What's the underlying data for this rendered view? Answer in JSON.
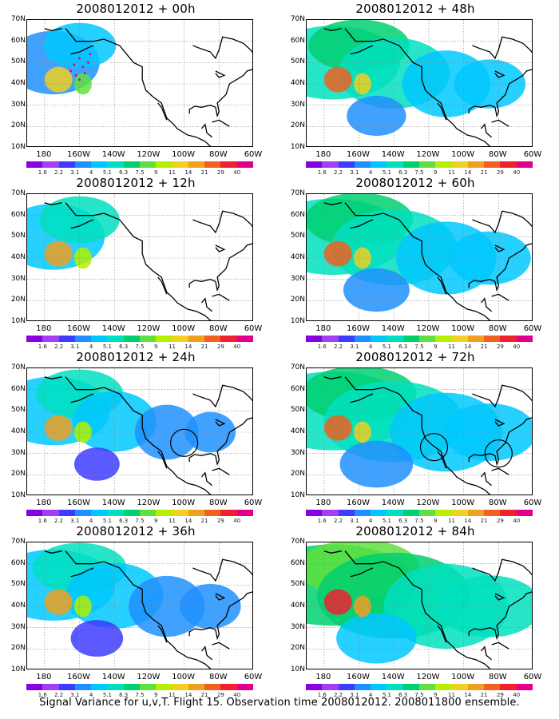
{
  "caption": "Signal Variance for u,v,T. Flight 15. Observation time 2008012012. 2008011800 ensemble.",
  "lat_labels": [
    "70N",
    "60N",
    "50N",
    "40N",
    "30N",
    "20N",
    "10N"
  ],
  "lon_labels": [
    "180",
    "160W",
    "140W",
    "120W",
    "100W",
    "80W",
    "60W"
  ],
  "colorbar": {
    "labels": [
      "1.6",
      "2.2",
      "3.1",
      "4",
      "5.1",
      "6.3",
      "7.5",
      "9",
      "11",
      "14",
      "21",
      "29",
      "40"
    ],
    "colors": [
      "#8a00e0",
      "#a040f0",
      "#3c3cff",
      "#1e90ff",
      "#00c8ff",
      "#00e0c0",
      "#00d070",
      "#60e040",
      "#b4f000",
      "#f0d020",
      "#f0a020",
      "#f06020",
      "#f02030",
      "#e0008a"
    ]
  },
  "panels": [
    {
      "title": "2008012012 + 00h",
      "level": 0.15,
      "markers": "dots",
      "circles": []
    },
    {
      "title": "2008012012 + 48h",
      "level": 0.55,
      "markers": "",
      "circles": []
    },
    {
      "title": "2008012012 + 12h",
      "level": 0.25,
      "markers": "",
      "circles": []
    },
    {
      "title": "2008012012 + 60h",
      "level": 0.65,
      "markers": "",
      "circles": []
    },
    {
      "title": "2008012012 + 24h",
      "level": 0.35,
      "markers": "",
      "circles": [
        {
          "lon": -100,
          "lat": 35
        }
      ]
    },
    {
      "title": "2008012012 + 72h",
      "level": 0.75,
      "markers": "",
      "circles": [
        {
          "lon": -117,
          "lat": 33
        },
        {
          "lon": -80,
          "lat": 30
        }
      ]
    },
    {
      "title": "2008012012 + 36h",
      "level": 0.45,
      "markers": "",
      "circles": []
    },
    {
      "title": "2008012012 + 84h",
      "level": 0.85,
      "markers": "",
      "circles": []
    }
  ]
}
